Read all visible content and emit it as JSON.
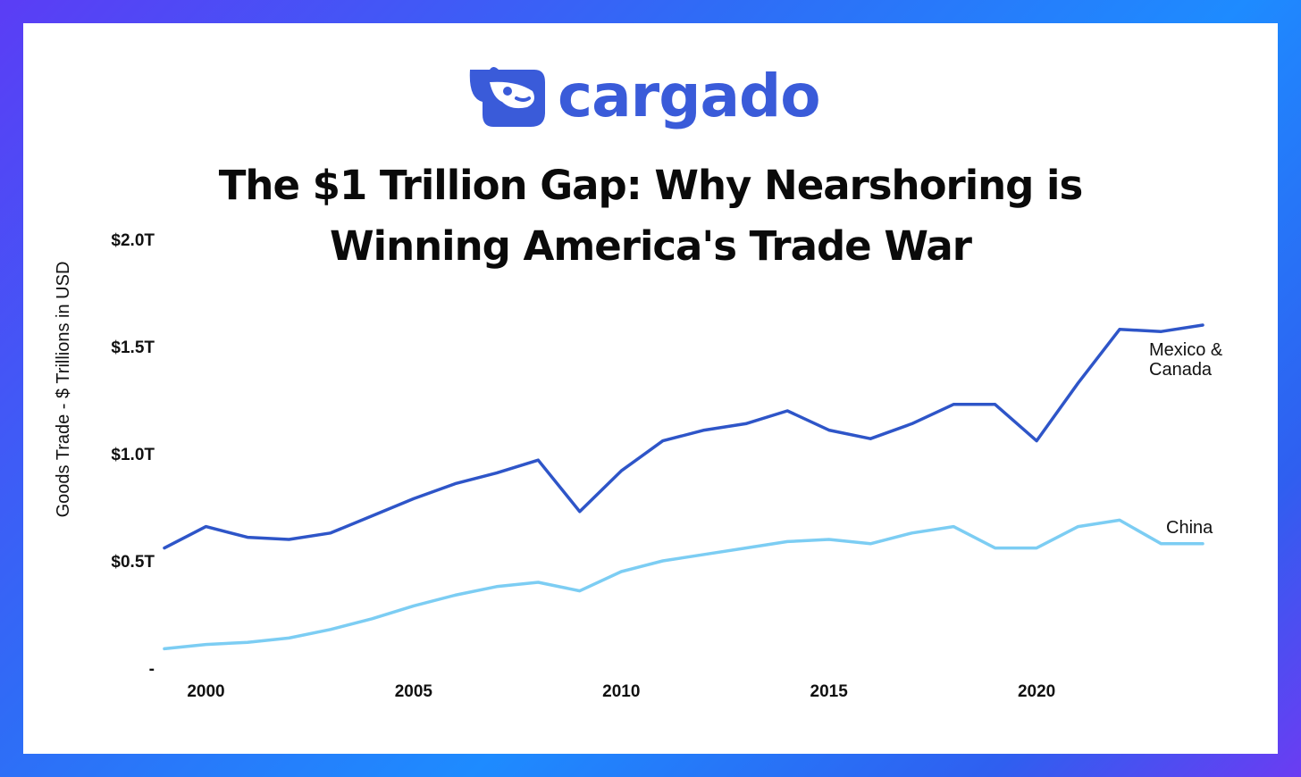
{
  "brand": {
    "name": "cargado",
    "color": "#3a5bd9"
  },
  "chart_data": {
    "type": "line",
    "title_line1": "The $1 Trillion Gap: Why Nearshoring is",
    "title_line2": "Winning America's Trade War",
    "ylabel": "Goods Trade - $ Trillions in USD",
    "xlabel": "",
    "ylim": [
      0,
      2.0
    ],
    "xlim": [
      1999,
      2024
    ],
    "yticks": [
      {
        "value": 0,
        "label": "-"
      },
      {
        "value": 0.5,
        "label": "$0.5T"
      },
      {
        "value": 1.0,
        "label": "$1.0T"
      },
      {
        "value": 1.5,
        "label": "$1.5T"
      },
      {
        "value": 2.0,
        "label": "$2.0T"
      }
    ],
    "xticks": [
      {
        "value": 2000,
        "label": "2000"
      },
      {
        "value": 2005,
        "label": "2005"
      },
      {
        "value": 2010,
        "label": "2010"
      },
      {
        "value": 2015,
        "label": "2015"
      },
      {
        "value": 2020,
        "label": "2020"
      }
    ],
    "x": [
      1999,
      2000,
      2001,
      2002,
      2003,
      2004,
      2005,
      2006,
      2007,
      2008,
      2009,
      2010,
      2011,
      2012,
      2013,
      2014,
      2015,
      2016,
      2017,
      2018,
      2019,
      2020,
      2021,
      2022,
      2023,
      2024
    ],
    "series": [
      {
        "name": "Mexico & Canada",
        "label_line1": "Mexico &",
        "label_line2": "Canada",
        "color": "#2e55c8",
        "values": [
          0.56,
          0.66,
          0.61,
          0.6,
          0.63,
          0.71,
          0.79,
          0.86,
          0.91,
          0.97,
          0.73,
          0.92,
          1.06,
          1.11,
          1.14,
          1.2,
          1.11,
          1.07,
          1.14,
          1.23,
          1.23,
          1.06,
          1.33,
          1.58,
          1.57,
          1.6
        ]
      },
      {
        "name": "China",
        "label_line1": "China",
        "label_line2": "",
        "color": "#7ccdf3",
        "values": [
          0.09,
          0.11,
          0.12,
          0.14,
          0.18,
          0.23,
          0.29,
          0.34,
          0.38,
          0.4,
          0.36,
          0.45,
          0.5,
          0.53,
          0.56,
          0.59,
          0.6,
          0.58,
          0.63,
          0.66,
          0.56,
          0.56,
          0.66,
          0.69,
          0.58,
          0.58
        ]
      }
    ]
  }
}
